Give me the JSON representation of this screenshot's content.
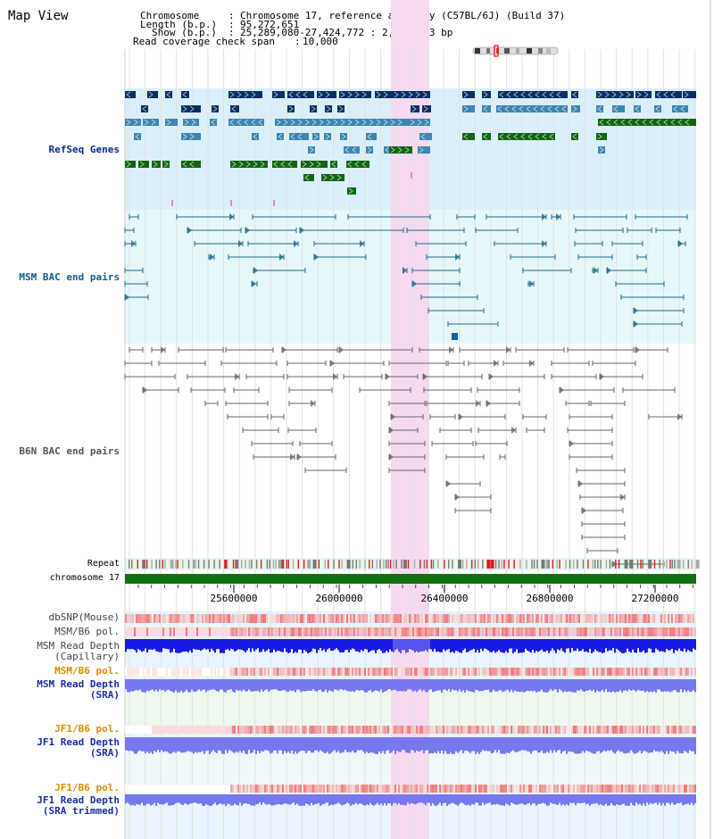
{
  "title": "Map View",
  "header": {
    "chrom_label": "Chromosome",
    "chrom_value": "Chromosome 17, reference assembly (C57BL/6J) (Build 37)",
    "length_label": "Length (b.p.)",
    "length_value": "95,272,651",
    "show_label": "Show (b.p.)",
    "show_value": "25,289,080-27,424,772 : 2,135,693 bp",
    "span_label": "Read coverage check span",
    "span_value": "10,000"
  },
  "tracks": {
    "refseq": "RefSeq Genes",
    "msm_bac": "MSM BAC end pairs",
    "b6n_bac": "B6N BAC end pairs",
    "repeat": "Repeat",
    "chromosome": "chromosome 17",
    "dbsnp": "dbSNP(Mouse)",
    "msm_b6_pol": "MSM/B6 pol.",
    "msm_depth_cap_1": "MSM Read Depth",
    "msm_depth_cap_2": "(Capillary)",
    "msm_b6_pol2": "MSM/B6 pol.",
    "msm_depth_sra_1": "MSM Read Depth",
    "msm_depth_sra_2": "(SRA)",
    "jf1_pol": "JF1/B6 pol.",
    "jf1_depth_1": "JF1 Read Depth",
    "jf1_depth_2": "(SRA)",
    "jf1_pol2": "JF1/B6 pol.",
    "jf1_trim_1": "JF1 Read Depth",
    "jf1_trim_2": "(SRA trimmed)"
  },
  "axis": {
    "ticks": [
      "25600000",
      "26000000",
      "26400000",
      "26800000",
      "27200000"
    ]
  },
  "colors": {
    "refseq_bg": "#dbeffa",
    "msm_bg": "#e6f7fa",
    "b6n_bg": "#ffffff",
    "highlight": "#f7d9f2",
    "gene_dark": "#0a2f63",
    "gene_mid": "#3c86b4",
    "gene_green": "#116611",
    "chrom_green": "#107010",
    "msm_line": "#1e6a8a",
    "b6n_line": "#666666",
    "depth_blue": "#1a1ae6",
    "depth_light": "#7878ee",
    "pol_orange": "#e08a00"
  }
}
